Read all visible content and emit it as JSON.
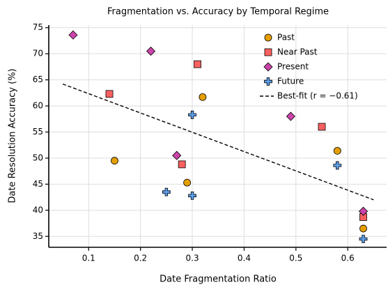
{
  "chart_data": {
    "type": "scatter",
    "title": "Fragmentation vs. Accuracy by Temporal Regime",
    "x_label": "Date Fragmentation Ratio",
    "y_label": "Date Resolution Accuracy (%)",
    "xlim": [
      0.023,
      0.675
    ],
    "ylim": [
      32.9,
      75.5
    ],
    "xticks": [
      0.1,
      0.2,
      0.3,
      0.4,
      0.5,
      0.6
    ],
    "yticks": [
      35,
      40,
      45,
      50,
      55,
      60,
      65,
      70,
      75
    ],
    "grid": true,
    "legend": "upper right",
    "series": [
      {
        "name": "Past",
        "marker": "circle",
        "color": "#e69f00",
        "x": [
          0.15,
          0.29,
          0.32,
          0.58,
          0.63
        ],
        "values": [
          49.5,
          45.3,
          61.7,
          51.4,
          36.5
        ]
      },
      {
        "name": "Near Past",
        "marker": "square",
        "color": "#f86060",
        "x": [
          0.14,
          0.28,
          0.31,
          0.55,
          0.63
        ],
        "values": [
          62.3,
          48.8,
          68.0,
          56.0,
          38.7
        ]
      },
      {
        "name": "Present",
        "marker": "diamond",
        "color": "#cc44aa",
        "x": [
          0.07,
          0.22,
          0.27,
          0.49,
          0.63
        ],
        "values": [
          73.6,
          70.5,
          50.5,
          58.0,
          39.8
        ]
      },
      {
        "name": "Future",
        "marker": "plus",
        "color": "#5c9ee8",
        "x": [
          0.25,
          0.3,
          0.3,
          0.58,
          0.63
        ],
        "values": [
          43.5,
          42.8,
          58.3,
          48.6,
          34.5
        ]
      }
    ],
    "fit": {
      "name": "Best-fit (r = −0.61)",
      "color": "#000000",
      "x": [
        0.05,
        0.65
      ],
      "values": [
        64.2,
        42.0
      ]
    }
  }
}
